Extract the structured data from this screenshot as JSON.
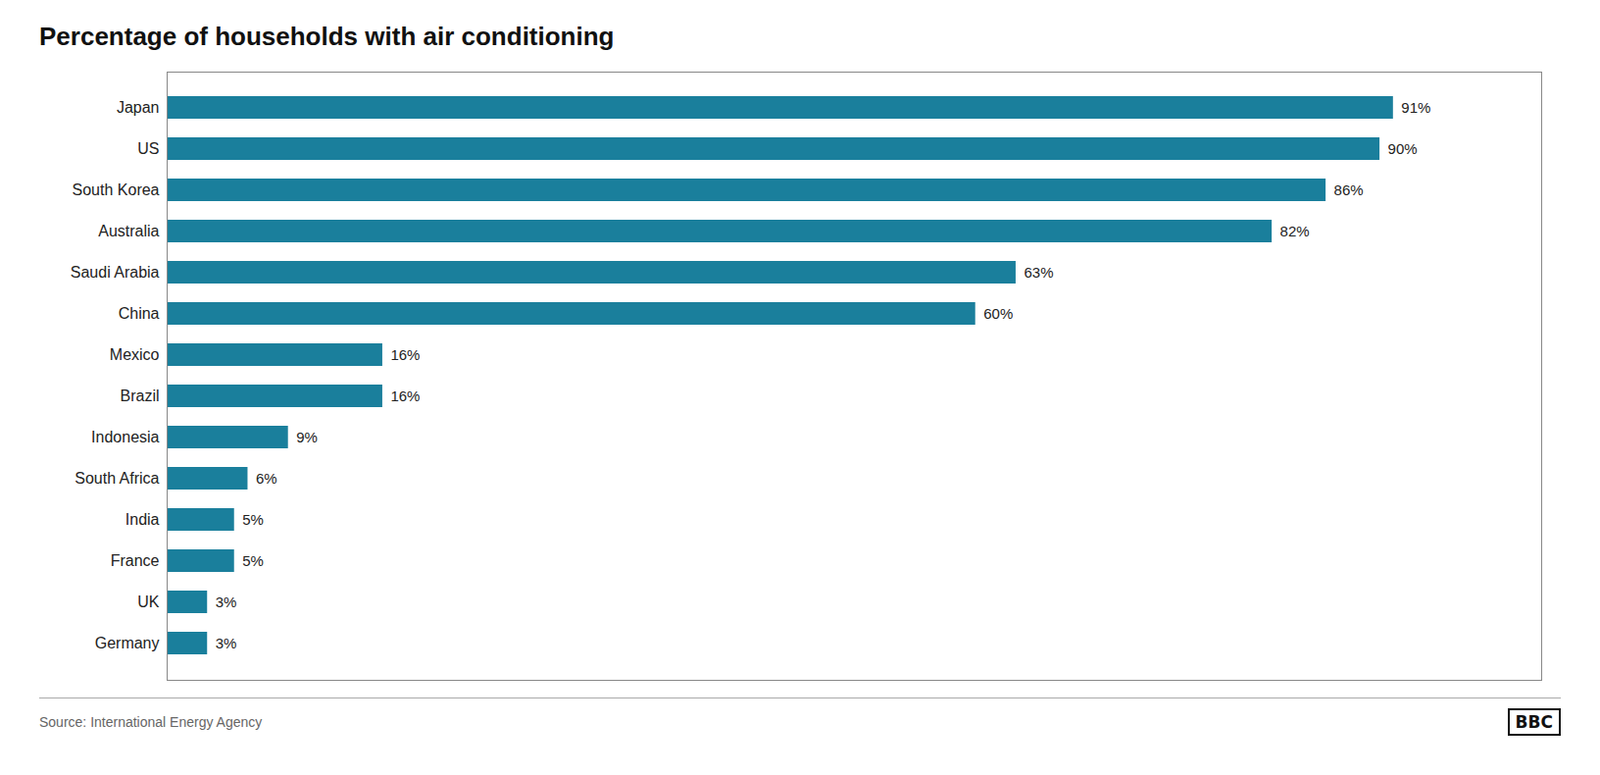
{
  "chart_data": {
    "type": "bar",
    "orientation": "horizontal",
    "title": "Percentage of households with air conditioning",
    "categories": [
      "Japan",
      "US",
      "South Korea",
      "Australia",
      "Saudi Arabia",
      "China",
      "Mexico",
      "Brazil",
      "Indonesia",
      "South Africa",
      "India",
      "France",
      "UK",
      "Germany"
    ],
    "values": [
      91,
      90,
      86,
      82,
      63,
      60,
      16,
      16,
      9,
      6,
      5,
      5,
      3,
      3
    ],
    "value_labels": [
      "91%",
      "90%",
      "86%",
      "82%",
      "63%",
      "60%",
      "16%",
      "16%",
      "9%",
      "6%",
      "5%",
      "5%",
      "3%",
      "3%"
    ],
    "data_labels": true,
    "color": "#1a7f9c",
    "xlim": [
      0,
      102
    ],
    "tick_labels": "y",
    "grid": false,
    "annotations": [
      "Source: International Energy Agency",
      "BBC"
    ]
  }
}
